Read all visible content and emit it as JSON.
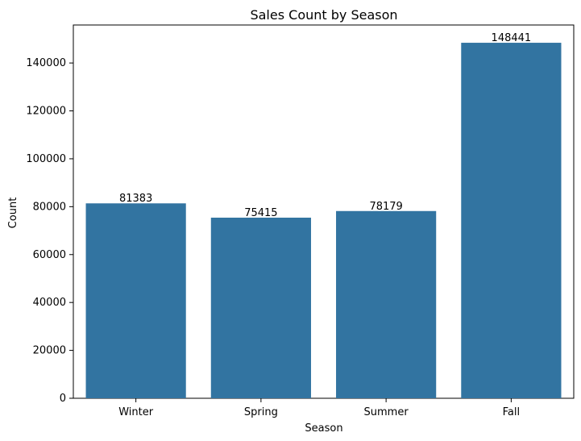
{
  "chart_data": {
    "type": "bar",
    "title": "Sales Count by Season",
    "xlabel": "Season",
    "ylabel": "Count",
    "categories": [
      "Winter",
      "Spring",
      "Summer",
      "Fall"
    ],
    "values": [
      81383,
      75415,
      78179,
      148441
    ],
    "data_labels": [
      "81383",
      "75415",
      "78179",
      "148441"
    ],
    "ylim": [
      0,
      155863
    ],
    "yticks": [
      0,
      20000,
      40000,
      60000,
      80000,
      100000,
      120000,
      140000
    ],
    "ytick_labels": [
      "0",
      "20000",
      "40000",
      "60000",
      "80000",
      "100000",
      "120000",
      "140000"
    ],
    "grid": false,
    "legend": "none",
    "bar_color": "#3274a1"
  }
}
